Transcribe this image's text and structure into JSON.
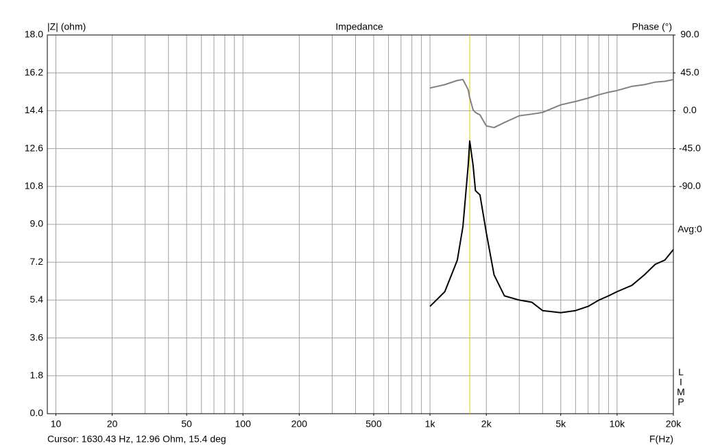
{
  "chart_data": {
    "type": "line",
    "title": "Impedance",
    "ylabel": "|Z| (ohm)",
    "y2label": "Phase (°)",
    "xlabel": "F(Hz)",
    "annotation": "Avg:0",
    "watermark": "LIMP",
    "cursor": {
      "x": 1630.43,
      "label": "Cursor: 1630.43 Hz, 12.96 Ohm, 15.4 deg",
      "color": "#d8c800"
    },
    "log_x": true,
    "grid": true,
    "xlim": [
      9,
      20000
    ],
    "xticks": [
      10,
      20,
      50,
      100,
      200,
      500,
      {
        "value": 1000,
        "label": "1k"
      },
      {
        "value": 2000,
        "label": "2k"
      },
      {
        "value": 5000,
        "label": "5k"
      },
      {
        "value": 10000,
        "label": "10k"
      },
      {
        "value": 20000,
        "label": "20k"
      }
    ],
    "xgrid": [
      10,
      20,
      30,
      40,
      50,
      60,
      70,
      80,
      90,
      100,
      200,
      300,
      400,
      500,
      600,
      700,
      800,
      900,
      1000,
      2000,
      3000,
      4000,
      5000,
      6000,
      7000,
      8000,
      9000,
      10000,
      20000
    ],
    "ylim": [
      0,
      18
    ],
    "yticks": [
      {
        "value": 0,
        "label": "0.0"
      },
      {
        "value": 1.8,
        "label": "1.8"
      },
      {
        "value": 3.6,
        "label": "3.6"
      },
      {
        "value": 5.4,
        "label": "5.4"
      },
      {
        "value": 7.2,
        "label": "7.2"
      },
      {
        "value": 9,
        "label": "9.0"
      },
      {
        "value": 10.8,
        "label": "10.8"
      },
      {
        "value": 12.6,
        "label": "12.6"
      },
      {
        "value": 14.4,
        "label": "14.4"
      },
      {
        "value": 16.2,
        "label": "16.2"
      },
      {
        "value": 18,
        "label": "18.0"
      }
    ],
    "y2lim": [
      -360,
      90
    ],
    "y2ticks": [
      {
        "value": 90,
        "label": "90.0"
      },
      {
        "value": 45,
        "label": "45.0"
      },
      {
        "value": 0,
        "label": "0.0"
      },
      {
        "value": -45,
        "label": "-45.0"
      },
      {
        "value": -90,
        "label": "-90.0"
      }
    ],
    "x": [
      1000,
      1200,
      1400,
      1500,
      1600,
      1630.43,
      1700,
      1750,
      1850,
      2000,
      2200,
      2500,
      3000,
      3500,
      4000,
      5000,
      6000,
      7000,
      8000,
      9000,
      10000,
      12000,
      14000,
      16000,
      18000,
      20000
    ],
    "series": [
      {
        "color": "#000000",
        "values": [
          5.1,
          5.8,
          7.3,
          8.9,
          11.8,
          12.96,
          11.8,
          10.6,
          10.4,
          8.6,
          6.6,
          5.6,
          5.4,
          5.3,
          4.9,
          4.8,
          4.9,
          5.1,
          5.4,
          5.6,
          5.8,
          6.1,
          6.6,
          7.1,
          7.3,
          7.8
        ]
      },
      {
        "color": "#808080",
        "axis": "y2",
        "values": [
          27,
          31,
          36,
          37,
          25,
          15.4,
          1,
          -2,
          -5,
          -18,
          -20,
          -14,
          -6,
          -4,
          -2,
          7,
          11,
          15,
          19,
          22,
          24,
          29,
          31,
          34,
          35,
          37
        ]
      }
    ]
  }
}
